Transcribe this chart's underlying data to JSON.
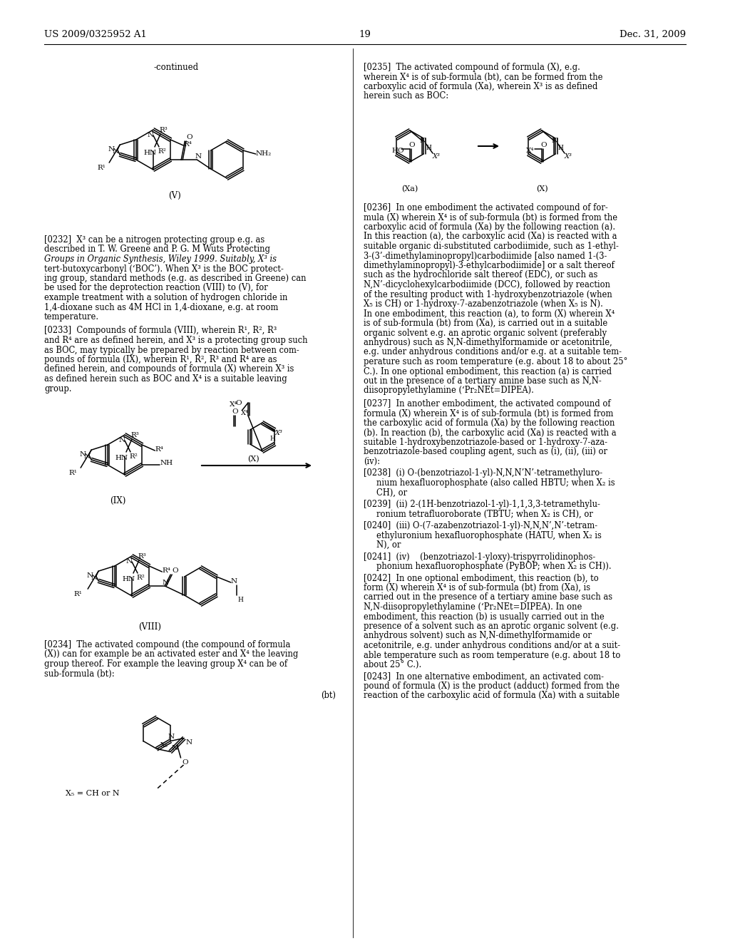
{
  "page_number": "19",
  "header_left": "US 2009/0325952 A1",
  "header_right": "Dec. 31, 2009",
  "background_color": "#ffffff"
}
